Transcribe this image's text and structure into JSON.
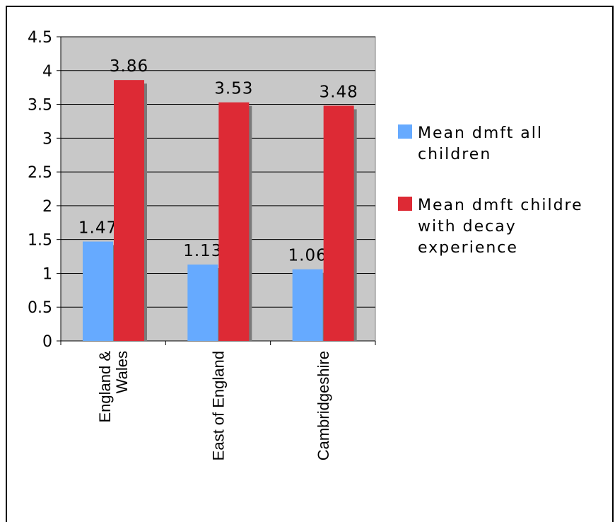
{
  "chart_data": {
    "type": "bar",
    "categories": [
      [
        "England &",
        "Wales"
      ],
      [
        "East of England"
      ],
      [
        "Cambridgeshire"
      ]
    ],
    "series": [
      {
        "name": [
          "Mean dmft all",
          "children"
        ],
        "values": [
          1.47,
          1.13,
          1.06
        ],
        "color": "#66aaff"
      },
      {
        "name": [
          "Mean dmft childre",
          "with decay",
          "experience"
        ],
        "values": [
          3.86,
          3.53,
          3.48
        ],
        "color": "#dd2a35"
      }
    ],
    "data_labels": [
      [
        "1.47",
        "1.13",
        "1.06"
      ],
      [
        "3.86",
        "3.53",
        "3.48"
      ]
    ],
    "yticks": [
      "0",
      "0.5",
      "1",
      "1.5",
      "2",
      "2.5",
      "3",
      "3.5",
      "4",
      "4.5"
    ],
    "ylim": [
      0,
      4.5
    ],
    "grid": true,
    "plot_background": "#c8c8c8",
    "legend_position": "right"
  }
}
